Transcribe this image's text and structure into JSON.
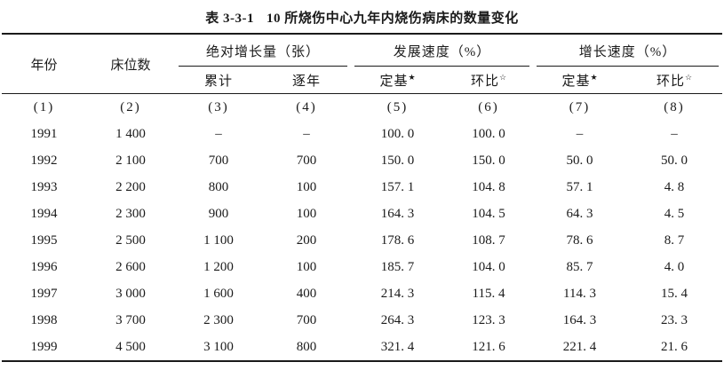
{
  "title": {
    "label": "表 3-3-1",
    "caption": "10 所烧伤中心九年内烧伤病床的数量变化"
  },
  "table": {
    "header": {
      "year": "年份",
      "beds": "床位数",
      "groups": [
        {
          "label": "绝对增长量（张）"
        },
        {
          "label": "发展速度（%）"
        },
        {
          "label": "增长速度（%）"
        }
      ],
      "subs": [
        {
          "label": "累计",
          "mark": ""
        },
        {
          "label": "逐年",
          "mark": ""
        },
        {
          "label": "定基",
          "mark": "★"
        },
        {
          "label": "环比",
          "mark": "☆"
        },
        {
          "label": "定基",
          "mark": "★"
        },
        {
          "label": "环比",
          "mark": "☆"
        }
      ],
      "index_row": [
        "(1)",
        "(2)",
        "(3)",
        "(4)",
        "(5)",
        "(6)",
        "(7)",
        "(8)"
      ]
    },
    "rows": [
      [
        "1991",
        "1 400",
        "–",
        "–",
        "100. 0",
        "100. 0",
        "–",
        "–"
      ],
      [
        "1992",
        "2 100",
        "700",
        "700",
        "150. 0",
        "150. 0",
        "50. 0",
        "50. 0"
      ],
      [
        "1993",
        "2 200",
        "800",
        "100",
        "157. 1",
        "104. 8",
        "57. 1",
        "4. 8"
      ],
      [
        "1994",
        "2 300",
        "900",
        "100",
        "164. 3",
        "104. 5",
        "64. 3",
        "4. 5"
      ],
      [
        "1995",
        "2 500",
        "1 100",
        "200",
        "178. 6",
        "108. 7",
        "78. 6",
        "8. 7"
      ],
      [
        "1996",
        "2 600",
        "1 200",
        "100",
        "185. 7",
        "104. 0",
        "85. 7",
        "4. 0"
      ],
      [
        "1997",
        "3 000",
        "1 600",
        "400",
        "214. 3",
        "115. 4",
        "114. 3",
        "15. 4"
      ],
      [
        "1998",
        "3 700",
        "2 300",
        "700",
        "264. 3",
        "123. 3",
        "164. 3",
        "23. 3"
      ],
      [
        "1999",
        "4 500",
        "3 100",
        "800",
        "321. 4",
        "121. 6",
        "221. 4",
        "21. 6"
      ]
    ]
  },
  "colors": {
    "ink": "#1a1a1a",
    "paper": "#ffffff"
  }
}
